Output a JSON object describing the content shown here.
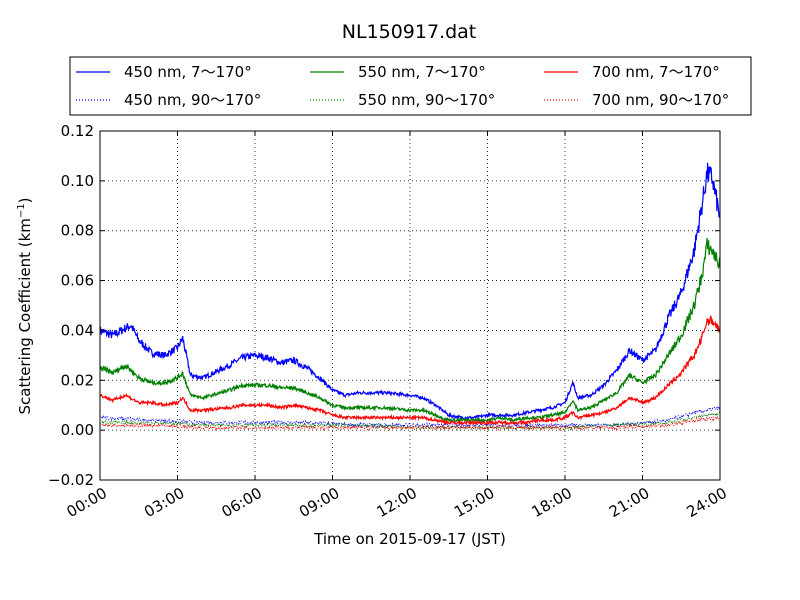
{
  "chart_data": {
    "type": "line",
    "title": "NL150917.dat",
    "xlabel": "Time on 2015-09-17 (JST)",
    "ylabel_main": "Scattering Coefficient (km",
    "ylabel_sup": "−1",
    "ylabel_end": ")",
    "xlim_hours": [
      0,
      24
    ],
    "ylim": [
      -0.02,
      0.12
    ],
    "grid": true,
    "legend_position": "top",
    "x_ticks": [
      {
        "hour": 0,
        "label": "00:00"
      },
      {
        "hour": 3,
        "label": "03:00"
      },
      {
        "hour": 6,
        "label": "06:00"
      },
      {
        "hour": 9,
        "label": "09:00"
      },
      {
        "hour": 12,
        "label": "12:00"
      },
      {
        "hour": 15,
        "label": "15:00"
      },
      {
        "hour": 18,
        "label": "18:00"
      },
      {
        "hour": 21,
        "label": "21:00"
      },
      {
        "hour": 24,
        "label": "24:00"
      }
    ],
    "y_ticks": [
      {
        "value": -0.02,
        "label": "−0.02"
      },
      {
        "value": 0.0,
        "label": "0.00"
      },
      {
        "value": 0.02,
        "label": "0.02"
      },
      {
        "value": 0.04,
        "label": "0.04"
      },
      {
        "value": 0.06,
        "label": "0.06"
      },
      {
        "value": 0.08,
        "label": "0.08"
      },
      {
        "value": 0.1,
        "label": "0.10"
      },
      {
        "value": 0.12,
        "label": "0.12"
      }
    ],
    "series": [
      {
        "name": "450 nm, 7～170°",
        "color": "#0000ff",
        "style": "solid",
        "x": [
          0,
          0.5,
          1,
          1.2,
          1.5,
          2,
          2.5,
          3,
          3.2,
          3.5,
          4,
          5,
          5.5,
          6,
          6.5,
          7,
          7.5,
          8,
          8.5,
          9,
          9.5,
          10,
          11,
          12,
          12.5,
          13,
          13.5,
          14,
          14.5,
          15,
          15.5,
          16,
          16.5,
          17,
          17.5,
          18,
          18.3,
          18.5,
          19,
          19.5,
          20,
          20.5,
          21,
          21.5,
          22,
          22.5,
          23,
          23.3,
          23.5,
          23.7,
          24
        ],
        "y": [
          0.04,
          0.038,
          0.041,
          0.042,
          0.036,
          0.031,
          0.03,
          0.033,
          0.037,
          0.022,
          0.021,
          0.026,
          0.029,
          0.03,
          0.029,
          0.027,
          0.028,
          0.025,
          0.021,
          0.016,
          0.014,
          0.015,
          0.015,
          0.014,
          0.013,
          0.01,
          0.006,
          0.005,
          0.005,
          0.006,
          0.006,
          0.006,
          0.007,
          0.008,
          0.009,
          0.011,
          0.019,
          0.013,
          0.014,
          0.018,
          0.024,
          0.032,
          0.028,
          0.032,
          0.045,
          0.055,
          0.072,
          0.09,
          0.103,
          0.101,
          0.085
        ]
      },
      {
        "name": "450 nm, 90～170°",
        "color": "#0000ff",
        "style": "dotted",
        "x": [
          0,
          2,
          4,
          6,
          8,
          10,
          12,
          14,
          16,
          18,
          20,
          22,
          23,
          24
        ],
        "y": [
          0.005,
          0.004,
          0.003,
          0.003,
          0.003,
          0.002,
          0.002,
          0.002,
          0.002,
          0.002,
          0.002,
          0.004,
          0.007,
          0.009
        ]
      },
      {
        "name": "550 nm, 7～170°",
        "color": "#008000",
        "style": "solid",
        "x": [
          0,
          0.5,
          1,
          1.5,
          2,
          2.5,
          3,
          3.2,
          3.5,
          4,
          5,
          5.5,
          6,
          6.5,
          7,
          7.5,
          8,
          8.5,
          9,
          9.5,
          10,
          11,
          12,
          12.5,
          13,
          13.5,
          14,
          14.5,
          15,
          15.5,
          16,
          16.5,
          17,
          17.5,
          18,
          18.3,
          18.5,
          19,
          19.5,
          20,
          20.5,
          21,
          21.5,
          22,
          22.5,
          23,
          23.3,
          23.5,
          23.7,
          24
        ],
        "y": [
          0.025,
          0.023,
          0.026,
          0.021,
          0.019,
          0.019,
          0.021,
          0.023,
          0.014,
          0.013,
          0.016,
          0.018,
          0.018,
          0.018,
          0.017,
          0.017,
          0.015,
          0.013,
          0.01,
          0.009,
          0.009,
          0.009,
          0.008,
          0.008,
          0.006,
          0.004,
          0.004,
          0.004,
          0.004,
          0.005,
          0.004,
          0.005,
          0.005,
          0.006,
          0.007,
          0.012,
          0.008,
          0.009,
          0.012,
          0.015,
          0.022,
          0.019,
          0.022,
          0.03,
          0.038,
          0.05,
          0.062,
          0.074,
          0.072,
          0.066
        ]
      },
      {
        "name": "550 nm, 90～170°",
        "color": "#008000",
        "style": "dotted",
        "x": [
          0,
          2,
          4,
          6,
          8,
          10,
          12,
          14,
          16,
          18,
          20,
          22,
          23,
          24
        ],
        "y": [
          0.003,
          0.003,
          0.002,
          0.002,
          0.002,
          0.002,
          0.001,
          0.001,
          0.001,
          0.001,
          0.002,
          0.003,
          0.005,
          0.007
        ]
      },
      {
        "name": "700 nm, 7～170°",
        "color": "#ff0000",
        "style": "solid",
        "x": [
          0,
          0.5,
          1,
          1.5,
          2,
          2.5,
          3,
          3.2,
          3.5,
          4,
          5,
          5.5,
          6,
          6.5,
          7,
          7.5,
          8,
          8.5,
          9,
          9.5,
          10,
          11,
          12,
          12.5,
          13,
          13.5,
          14,
          14.5,
          15,
          15.5,
          16,
          16.5,
          17,
          17.5,
          18,
          18.3,
          18.5,
          19,
          19.5,
          20,
          20.5,
          21,
          21.5,
          22,
          22.5,
          23,
          23.3,
          23.5,
          23.7,
          24
        ],
        "y": [
          0.014,
          0.012,
          0.014,
          0.011,
          0.011,
          0.01,
          0.011,
          0.013,
          0.008,
          0.008,
          0.009,
          0.01,
          0.01,
          0.01,
          0.009,
          0.01,
          0.009,
          0.008,
          0.006,
          0.005,
          0.005,
          0.005,
          0.005,
          0.005,
          0.004,
          0.003,
          0.003,
          0.003,
          0.003,
          0.003,
          0.003,
          0.003,
          0.004,
          0.004,
          0.005,
          0.007,
          0.005,
          0.006,
          0.007,
          0.009,
          0.013,
          0.011,
          0.013,
          0.018,
          0.023,
          0.03,
          0.037,
          0.044,
          0.044,
          0.04
        ]
      },
      {
        "name": "700 nm, 90～170°",
        "color": "#ff0000",
        "style": "dotted",
        "x": [
          0,
          2,
          4,
          6,
          8,
          10,
          12,
          14,
          16,
          18,
          20,
          22,
          23,
          24
        ],
        "y": [
          0.002,
          0.002,
          0.001,
          0.001,
          0.001,
          0.001,
          0.001,
          0.001,
          0.001,
          0.001,
          0.001,
          0.002,
          0.004,
          0.005
        ]
      }
    ]
  }
}
